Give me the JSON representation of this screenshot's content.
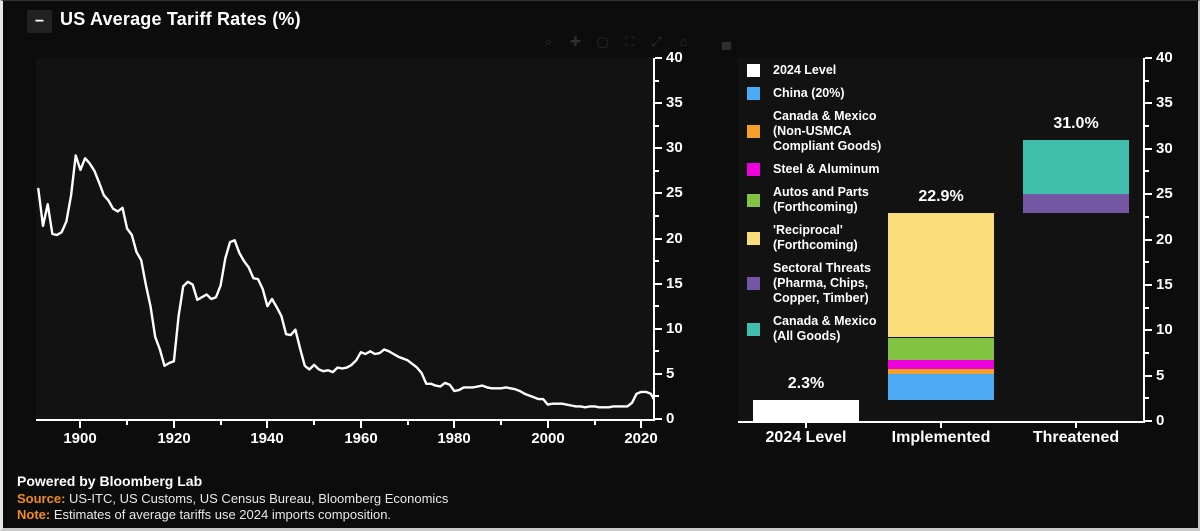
{
  "frame": {
    "title": "US Average Tariff Rates (%)",
    "collapse_glyph": "−"
  },
  "modebar": {
    "icons": [
      {
        "name": "zoom-icon",
        "glyph": "⌕"
      },
      {
        "name": "pan-icon",
        "glyph": "✚"
      },
      {
        "name": "box-select-icon",
        "glyph": "▢"
      },
      {
        "name": "lasso-select-icon",
        "glyph": "⛶"
      },
      {
        "name": "autoscale-icon",
        "glyph": "⤢"
      },
      {
        "name": "reset-axes-icon",
        "glyph": "⌂"
      },
      {
        "name": "chart-logo-icon",
        "glyph": "▄"
      }
    ]
  },
  "footer": {
    "powered": "Powered by Bloomberg Lab",
    "source_label": "Source:",
    "source_text": " US-ITC, US Customs, US Census Bureau, Bloomberg Economics",
    "note_label": "Note:",
    "note_text": " Estimates of average tariffs use 2024 imports composition.",
    "label_color": "#f18c1e"
  },
  "chart_data": [
    {
      "type": "line",
      "name": "us-average-tariff-history",
      "title": "US Average Tariff Rates (%)",
      "x_start": 1891,
      "x_end": 2024,
      "y": [
        25.5,
        21.4,
        23.8,
        20.5,
        20.4,
        20.7,
        21.9,
        24.8,
        29.2,
        27.6,
        28.9,
        28.3,
        27.5,
        26.2,
        24.8,
        24.2,
        23.3,
        23.0,
        23.4,
        21.1,
        20.4,
        18.5,
        17.6,
        14.9,
        12.5,
        9.1,
        7.7,
        5.9,
        6.2,
        6.4,
        11.4,
        14.7,
        15.2,
        14.9,
        13.2,
        13.5,
        13.8,
        13.3,
        13.5,
        14.8,
        17.8,
        19.6,
        19.8,
        18.4,
        17.5,
        16.8,
        15.6,
        15.5,
        14.4,
        12.5,
        13.3,
        12.4,
        11.4,
        9.4,
        9.3,
        9.9,
        7.8,
        5.9,
        5.5,
        6.0,
        5.5,
        5.3,
        5.4,
        5.2,
        5.7,
        5.6,
        5.7,
        6.0,
        6.5,
        7.4,
        7.2,
        7.5,
        7.2,
        7.3,
        7.7,
        7.5,
        7.2,
        6.9,
        6.7,
        6.5,
        6.1,
        5.7,
        5.1,
        3.9,
        3.9,
        3.7,
        3.6,
        4.0,
        3.8,
        3.1,
        3.2,
        3.5,
        3.5,
        3.5,
        3.6,
        3.7,
        3.5,
        3.4,
        3.4,
        3.4,
        3.5,
        3.4,
        3.3,
        3.1,
        2.8,
        2.6,
        2.4,
        2.2,
        2.2,
        1.6,
        1.7,
        1.7,
        1.7,
        1.6,
        1.5,
        1.4,
        1.4,
        1.3,
        1.4,
        1.4,
        1.3,
        1.3,
        1.3,
        1.4,
        1.4,
        1.4,
        1.4,
        1.8,
        2.8,
        3.0,
        3.0,
        2.8,
        2.4,
        2.3
      ],
      "xlim": [
        1890.5,
        2022.5
      ],
      "ylim": [
        0,
        40
      ],
      "xticks": [
        1900,
        1920,
        1940,
        1960,
        1980,
        2000,
        2020
      ],
      "xminor": [
        1910,
        1930,
        1950,
        1970,
        1990,
        2010
      ],
      "yticks": [
        0,
        5,
        10,
        15,
        20,
        25,
        30,
        35,
        40
      ],
      "line_color": "#ffffff",
      "grid": false
    },
    {
      "type": "bar",
      "name": "tariff-scenarios-stacked",
      "stacked": true,
      "categories": [
        "2024 Level",
        "Implemented",
        "Threatened"
      ],
      "totals": [
        2.3,
        22.9,
        31.0
      ],
      "annotations": [
        "2.3%",
        "22.9%",
        "31.0%"
      ],
      "ylim": [
        0,
        40
      ],
      "yticks": [
        0,
        5,
        10,
        15,
        20,
        25,
        30,
        35,
        40
      ],
      "bars": [
        {
          "label": "2024 Level",
          "segments": [
            {
              "name": "2024 Level",
              "color": "#ffffff",
              "from": 0,
              "to": 2.3
            }
          ]
        },
        {
          "label": "Implemented",
          "segments": [
            {
              "name": "China (20%)",
              "color": "#4dabf5",
              "from": 2.3,
              "to": 5.2
            },
            {
              "name": "Canada & Mexico (Non-USMCA Compliant Goods)",
              "color": "#f5a029",
              "from": 5.2,
              "to": 5.7
            },
            {
              "name": "Steel & Aluminum",
              "color": "#ee00dd",
              "from": 5.7,
              "to": 6.8
            },
            {
              "name": "Autos and Parts (Forthcoming)",
              "color": "#82c341",
              "from": 6.8,
              "to": 9.2
            },
            {
              "name": "'Reciprocal' (Forthcoming)",
              "color": "#f9dd79",
              "from": 9.2,
              "to": 22.9
            }
          ]
        },
        {
          "label": "Threatened",
          "segments": [
            {
              "name": "Sectoral Threats (Pharma, Chips, Copper, Timber)",
              "color": "#7356a4",
              "from": 22.9,
              "to": 25.0
            },
            {
              "name": "Canada & Mexico (All Goods)",
              "color": "#3fbfab",
              "from": 25.0,
              "to": 31.0
            }
          ]
        }
      ],
      "legend_position": "top-left",
      "legend": [
        {
          "label": "2024 Level",
          "color": "#ffffff"
        },
        {
          "label": "China (20%)",
          "color": "#4dabf5"
        },
        {
          "label": "Canada & Mexico\n(Non-USMCA\nCompliant Goods)",
          "color": "#f5a029"
        },
        {
          "label": "Steel & Aluminum",
          "color": "#ee00dd"
        },
        {
          "label": "Autos and Parts\n(Forthcoming)",
          "color": "#82c341"
        },
        {
          "label": "'Reciprocal'\n(Forthcoming)",
          "color": "#f9dd79"
        },
        {
          "label": "Sectoral Threats\n(Pharma, Chips,\nCopper, Timber)",
          "color": "#7356a4"
        },
        {
          "label": "Canada & Mexico\n(All Goods)",
          "color": "#3fbfab"
        }
      ]
    }
  ]
}
